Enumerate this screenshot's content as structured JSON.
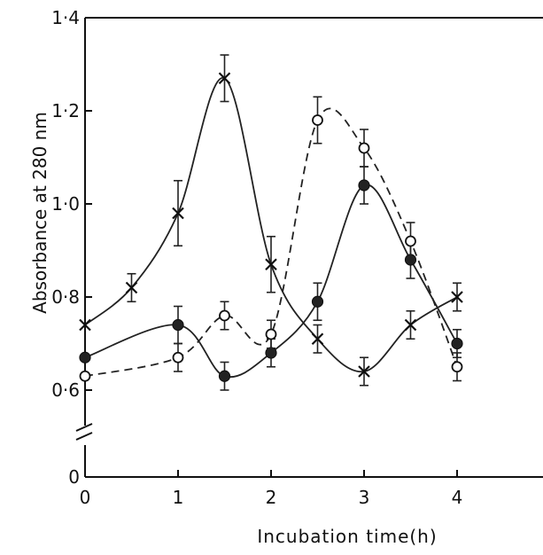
{
  "chart_data": {
    "type": "line",
    "xlabel": "Incubation time(h)",
    "ylabel": "Absorbance at 280 nm",
    "xlim": [
      0,
      4
    ],
    "ylim": [
      0.6,
      1.4
    ],
    "axis_break": "between 0 and 0.6 on y-axis",
    "grid": false,
    "x_ticks": [
      "0",
      "1",
      "2",
      "3",
      "4"
    ],
    "y_ticks": [
      "0",
      "0·6",
      "0·8",
      "1·0",
      "1·2",
      "1·4"
    ],
    "series": [
      {
        "marker": "x",
        "line": "solid",
        "x": [
          0,
          0.5,
          1,
          1.5,
          2,
          2.5,
          3,
          3.5,
          4
        ],
        "y": [
          0.74,
          0.82,
          0.98,
          1.27,
          0.87,
          0.71,
          0.64,
          0.74,
          0.8
        ],
        "err": [
          0.0,
          0.03,
          0.07,
          0.05,
          0.06,
          0.03,
          0.03,
          0.03,
          0.03
        ]
      },
      {
        "marker": "filled-circle",
        "line": "solid",
        "x": [
          0,
          1,
          1.5,
          2,
          2.5,
          3,
          3.5,
          4
        ],
        "y": [
          0.67,
          0.74,
          0.63,
          0.68,
          0.79,
          1.04,
          0.88,
          0.7
        ],
        "err": [
          0.0,
          0.04,
          0.03,
          0.03,
          0.04,
          0.04,
          0.04,
          0.03
        ]
      },
      {
        "marker": "open-circle",
        "line": "dashed",
        "x": [
          0,
          1,
          1.5,
          2,
          2.5,
          3,
          3.5,
          4
        ],
        "y": [
          0.63,
          0.67,
          0.76,
          0.72,
          1.18,
          1.12,
          0.92,
          0.65
        ],
        "err": [
          0.0,
          0.03,
          0.03,
          0.03,
          0.05,
          0.04,
          0.04,
          0.03
        ]
      }
    ]
  }
}
